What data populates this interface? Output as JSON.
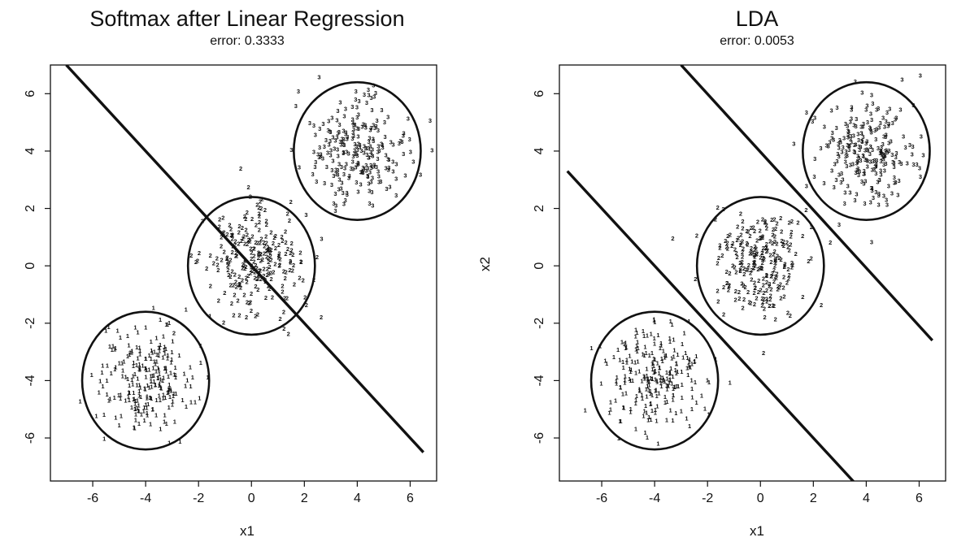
{
  "chart_data": [
    {
      "type": "scatter",
      "title": "Softmax after Linear Regression",
      "subtitle": "error: 0.3333",
      "xlabel": "x1",
      "ylabel": "",
      "xlim": [
        -7.6,
        7.0
      ],
      "ylim": [
        -7.5,
        7.0
      ],
      "xticks": [
        -6,
        -4,
        -2,
        0,
        2,
        4,
        6
      ],
      "yticks": [
        -6,
        -4,
        -2,
        0,
        2,
        4,
        6
      ],
      "classes": [
        {
          "label": "1",
          "center": [
            -4,
            -4
          ],
          "sd": 0.9,
          "n": 240
        },
        {
          "label": "2",
          "center": [
            0,
            0
          ],
          "sd": 0.9,
          "n": 240
        },
        {
          "label": "3",
          "center": [
            4,
            4
          ],
          "sd": 0.9,
          "n": 240
        }
      ],
      "circles": [
        {
          "center": [
            -4,
            -4
          ],
          "radius": 2.4
        },
        {
          "center": [
            0,
            0
          ],
          "radius": 2.4
        },
        {
          "center": [
            4,
            4
          ],
          "radius": 2.4
        }
      ],
      "boundaries": [
        {
          "from": [
            -7.0,
            7.0
          ],
          "to": [
            6.5,
            -6.5
          ]
        }
      ]
    },
    {
      "type": "scatter",
      "title": "LDA",
      "subtitle": "error: 0.0053",
      "xlabel": "x1",
      "ylabel": "x2",
      "xlim": [
        -7.6,
        7.0
      ],
      "ylim": [
        -7.5,
        7.0
      ],
      "xticks": [
        -6,
        -4,
        -2,
        0,
        2,
        4,
        6
      ],
      "yticks": [
        -6,
        -4,
        -2,
        0,
        2,
        4,
        6
      ],
      "classes": [
        {
          "label": "1",
          "center": [
            -4,
            -4
          ],
          "sd": 0.9,
          "n": 240
        },
        {
          "label": "2",
          "center": [
            0,
            0
          ],
          "sd": 0.9,
          "n": 240
        },
        {
          "label": "3",
          "center": [
            4,
            4
          ],
          "sd": 0.9,
          "n": 240
        }
      ],
      "circles": [
        {
          "center": [
            -4,
            -4
          ],
          "radius": 2.4
        },
        {
          "center": [
            0,
            0
          ],
          "radius": 2.4
        },
        {
          "center": [
            4,
            4
          ],
          "radius": 2.4
        }
      ],
      "boundaries": [
        {
          "from": [
            -7.3,
            3.3
          ],
          "to": [
            3.6,
            -7.6
          ]
        },
        {
          "from": [
            -3.0,
            7.0
          ],
          "to": [
            6.5,
            -2.6
          ]
        }
      ]
    }
  ]
}
